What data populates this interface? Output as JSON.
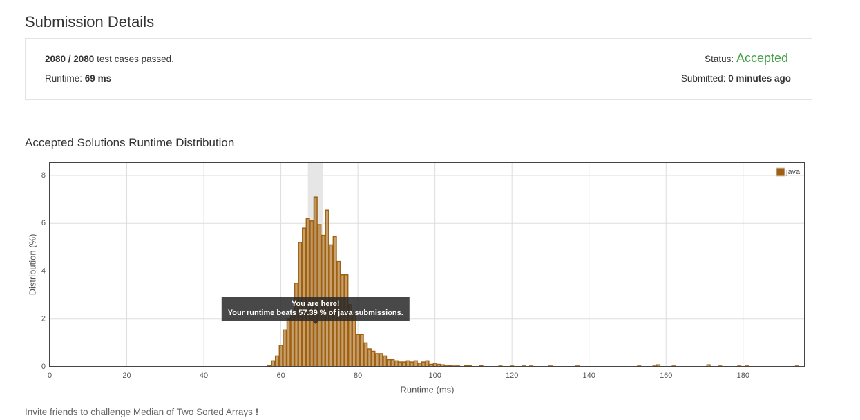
{
  "header": {
    "title": "Submission Details"
  },
  "summary": {
    "passed": "2080 / 2080",
    "passed_text": "test cases passed.",
    "runtime_label": "Runtime:",
    "runtime": "69 ms",
    "status_label": "Status:",
    "status": "Accepted",
    "submitted_label": "Submitted:",
    "submitted": "0 minutes ago"
  },
  "chart_data": {
    "type": "bar",
    "title": "Accepted Solutions Runtime Distribution",
    "x_label": "Runtime (ms)",
    "y_label": "Distribution (%)",
    "x": [
      57,
      58,
      59,
      60,
      61,
      62,
      63,
      64,
      65,
      66,
      67,
      68,
      69,
      70,
      71,
      72,
      73,
      74,
      75,
      76,
      77,
      78,
      79,
      80,
      81,
      82,
      83,
      84,
      85,
      86,
      87,
      88,
      89,
      90,
      91,
      92,
      93,
      94,
      95,
      96,
      97,
      98,
      99,
      100,
      101,
      102,
      103,
      104,
      105,
      106,
      108,
      109,
      112,
      117,
      120,
      123,
      125,
      130,
      137,
      153,
      157,
      158,
      162,
      171,
      174,
      179,
      181,
      194
    ],
    "series": [
      {
        "name": "java",
        "color": "#a0600f",
        "values": [
          0.05,
          0.25,
          0.45,
          0.9,
          1.55,
          2.0,
          2.2,
          3.5,
          5.2,
          5.8,
          6.2,
          6.1,
          7.1,
          5.95,
          5.5,
          6.55,
          5.1,
          5.45,
          4.4,
          3.85,
          3.85,
          2.6,
          2.2,
          1.35,
          1.35,
          1.0,
          0.75,
          0.65,
          0.55,
          0.55,
          0.45,
          0.3,
          0.3,
          0.25,
          0.2,
          0.2,
          0.25,
          0.2,
          0.25,
          0.15,
          0.2,
          0.25,
          0.1,
          0.15,
          0.1,
          0.08,
          0.06,
          0.04,
          0.03,
          0.03,
          0.05,
          0.05,
          0.04,
          0.03,
          0.03,
          0.03,
          0.03,
          0.03,
          0.03,
          0.03,
          0.03,
          0.08,
          0.03,
          0.08,
          0.03,
          0.03,
          0.03,
          0.03
        ]
      }
    ],
    "xlim": [
      0,
      196
    ],
    "xticks": [
      0,
      20,
      40,
      60,
      80,
      100,
      120,
      140,
      160,
      180
    ],
    "ylim": [
      0,
      8.55
    ],
    "yticks": [
      0,
      2,
      4,
      6,
      8
    ],
    "grid": true,
    "legend": "top-right",
    "highlight_x": [
      67,
      71
    ],
    "annotation": {
      "title": "You are here!",
      "text": "Your runtime beats 57.39 % of java submissions."
    }
  },
  "footer": {
    "text": "Invite friends to challenge Median of Two Sorted Arrays",
    "emphasis": "!"
  }
}
